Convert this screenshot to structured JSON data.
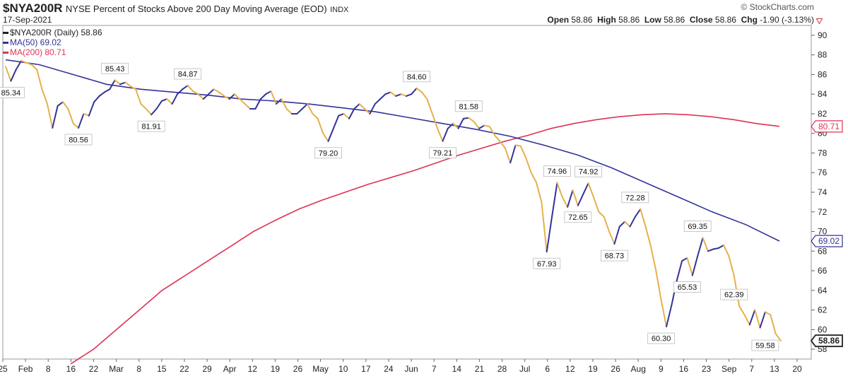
{
  "header": {
    "symbol": "$NYA200R",
    "title": "NYSE Percent of Stocks Above 200 Day Moving Average (EOD)",
    "exchange": "INDX",
    "date": "17-Sep-2021",
    "brand": "© StockCharts.com",
    "open_label": "Open",
    "open": "58.86",
    "high_label": "High",
    "high": "58.86",
    "low_label": "Low",
    "low": "58.86",
    "close_label": "Close",
    "close": "58.86",
    "chg_label": "Chg",
    "chg": "-1.90 (-3.13%)",
    "chg_icon": "down-triangle-icon"
  },
  "legend": [
    {
      "text": "$NYA200R (Daily) 58.86",
      "color": "#222222"
    },
    {
      "text": "MA(50) 69.02",
      "color": "#333399"
    },
    {
      "text": "MA(200) 80.71",
      "color": "#dd3355"
    }
  ],
  "chart_data": {
    "type": "line",
    "ylim": [
      57,
      91
    ],
    "yticks": [
      "58",
      "60",
      "62",
      "64",
      "66",
      "68",
      "70",
      "72",
      "74",
      "76",
      "78",
      "80",
      "82",
      "84",
      "86",
      "88",
      "90"
    ],
    "xtick_labels": [
      "25",
      "Feb",
      "8",
      "16",
      "22",
      "Mar",
      "8",
      "15",
      "22",
      "29",
      "Apr",
      "12",
      "19",
      "26",
      "May",
      "10",
      "17",
      "24",
      "Jun",
      "7",
      "14",
      "21",
      "28",
      "Jul",
      "6",
      "12",
      "19",
      "26",
      "Aug",
      "9",
      "16",
      "23",
      "Sep",
      "7",
      "13",
      "20"
    ],
    "price_badges": [
      {
        "value": 80.71,
        "label": "80.71",
        "color": "#dd3355"
      },
      {
        "value": 69.02,
        "label": "69.02",
        "color": "#333399"
      },
      {
        "value": 58.86,
        "label": "58.86",
        "color": "#222222"
      }
    ],
    "colors": {
      "up": "#333399",
      "down": "#e6b04a",
      "ma50": "#333399",
      "ma200": "#dd3355"
    },
    "series": [
      {
        "name": "$NYA200R (Daily)",
        "values": [
          86.8,
          85.34,
          86.5,
          87.4,
          87.2,
          87.0,
          86.5,
          84.5,
          83.0,
          80.56,
          82.8,
          83.2,
          82.5,
          81.0,
          80.56,
          82.0,
          81.8,
          83.2,
          83.8,
          84.2,
          84.5,
          85.43,
          85.0,
          85.2,
          84.8,
          84.5,
          83.0,
          82.5,
          81.91,
          82.5,
          83.3,
          83.5,
          83.0,
          84.0,
          84.5,
          84.87,
          84.3,
          84.0,
          83.5,
          84.0,
          84.5,
          84.2,
          83.8,
          83.5,
          84.0,
          83.5,
          83.0,
          82.5,
          82.5,
          83.5,
          84.0,
          84.3,
          83.0,
          83.5,
          82.5,
          82.0,
          82.0,
          82.5,
          83.0,
          82.0,
          81.5,
          80.0,
          79.2,
          80.5,
          81.8,
          82.0,
          81.5,
          82.5,
          83.0,
          82.5,
          82.0,
          83.0,
          83.5,
          84.0,
          84.2,
          83.8,
          84.0,
          83.8,
          84.0,
          84.6,
          84.2,
          83.5,
          82.0,
          80.5,
          79.21,
          80.5,
          81.0,
          80.5,
          81.5,
          81.58,
          81.2,
          80.5,
          80.8,
          80.7,
          79.8,
          79.2,
          78.5,
          77.0,
          78.8,
          78.7,
          77.5,
          76.0,
          75.0,
          73.0,
          67.93,
          71.5,
          74.96,
          73.5,
          72.5,
          74.2,
          72.65,
          73.8,
          74.92,
          73.5,
          72.0,
          71.5,
          70.0,
          68.73,
          70.5,
          71.0,
          70.5,
          71.5,
          72.28,
          70.5,
          68.5,
          66.0,
          63.0,
          60.3,
          62.5,
          65.0,
          67.0,
          67.3,
          65.53,
          67.5,
          69.35,
          68.0,
          68.2,
          68.3,
          68.6,
          67.5,
          65.5,
          62.39,
          61.5,
          60.5,
          62.0,
          60.2,
          61.8,
          61.5,
          59.58,
          58.86
        ]
      },
      {
        "name": "MA(50)",
        "values": [
          87.5,
          87.0,
          86.0,
          85.0,
          84.5,
          84.2,
          83.9,
          83.5,
          83.3,
          83.0,
          82.6,
          82.2,
          81.6,
          81.0,
          80.4,
          79.7,
          78.8,
          77.8,
          76.5,
          75.0,
          73.5,
          72.0,
          70.7,
          69.02
        ]
      },
      {
        "name": "MA(200)",
        "values": [
          56.5,
          58.0,
          60.0,
          62.0,
          64.0,
          65.5,
          67.0,
          68.5,
          70.0,
          71.2,
          72.3,
          73.2,
          74.0,
          74.8,
          75.5,
          76.2,
          77.0,
          77.8,
          78.5,
          79.2,
          79.8,
          80.5,
          81.0,
          81.4,
          81.7,
          81.9,
          82.0,
          81.9,
          81.7,
          81.4,
          81.0,
          80.71
        ]
      }
    ],
    "annotations": [
      {
        "label": "85.34",
        "value": 85.34,
        "index": 1,
        "pos": "below"
      },
      {
        "label": "80.56",
        "value": 80.56,
        "index": 14,
        "pos": "below"
      },
      {
        "label": "85.43",
        "value": 85.43,
        "index": 21,
        "pos": "above"
      },
      {
        "label": "81.91",
        "value": 81.91,
        "index": 28,
        "pos": "below"
      },
      {
        "label": "84.87",
        "value": 84.87,
        "index": 35,
        "pos": "above"
      },
      {
        "label": "79.20",
        "value": 79.2,
        "index": 62,
        "pos": "below"
      },
      {
        "label": "84.60",
        "value": 84.6,
        "index": 79,
        "pos": "above"
      },
      {
        "label": "79.21",
        "value": 79.21,
        "index": 84,
        "pos": "below"
      },
      {
        "label": "81.58",
        "value": 81.58,
        "index": 89,
        "pos": "above"
      },
      {
        "label": "67.93",
        "value": 67.93,
        "index": 104,
        "pos": "below"
      },
      {
        "label": "74.96",
        "value": 74.96,
        "index": 106,
        "pos": "above"
      },
      {
        "label": "72.65",
        "value": 72.65,
        "index": 110,
        "pos": "below"
      },
      {
        "label": "74.92",
        "value": 74.92,
        "index": 112,
        "pos": "above"
      },
      {
        "label": "68.73",
        "value": 68.73,
        "index": 117,
        "pos": "below"
      },
      {
        "label": "72.28",
        "value": 72.28,
        "index": 121,
        "pos": "above"
      },
      {
        "label": "60.30",
        "value": 60.3,
        "index": 126,
        "pos": "below"
      },
      {
        "label": "65.53",
        "value": 65.53,
        "index": 131,
        "pos": "below"
      },
      {
        "label": "69.35",
        "value": 69.35,
        "index": 133,
        "pos": "above"
      },
      {
        "label": "62.39",
        "value": 62.39,
        "index": 140,
        "pos": "above"
      },
      {
        "label": "59.58",
        "value": 59.58,
        "index": 146,
        "pos": "below"
      }
    ]
  }
}
